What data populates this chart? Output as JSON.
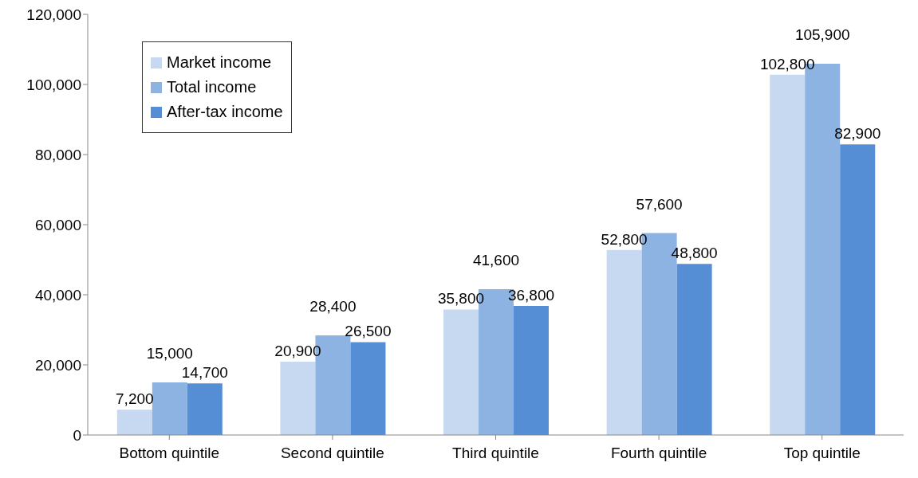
{
  "chart_data": {
    "type": "bar",
    "categories": [
      "Bottom quintile",
      "Second quintile",
      "Third quintile",
      "Fourth quintile",
      "Top quintile"
    ],
    "series": [
      {
        "name": "Market income",
        "color": "#c6d9f1",
        "values": [
          7200,
          20900,
          35800,
          52800,
          102800
        ],
        "value_labels": [
          "7,200",
          "20,900",
          "35,800",
          "52,800",
          "102,800"
        ]
      },
      {
        "name": "Total income",
        "color": "#8db3e2",
        "values": [
          15000,
          28400,
          41600,
          57600,
          105900
        ],
        "value_labels": [
          "15,000",
          "28,400",
          "41,600",
          "57,600",
          "105,900"
        ]
      },
      {
        "name": "After-tax income",
        "color": "#558ed5",
        "values": [
          14700,
          26500,
          36800,
          48800,
          82900
        ],
        "value_labels": [
          "14,700",
          "26,500",
          "36,800",
          "48,800",
          "82,900"
        ]
      }
    ],
    "ylim": [
      0,
      120000
    ],
    "yticks": [
      0,
      {
        "value": 20000,
        "label": "20,000"
      },
      {
        "value": 40000,
        "label": "40,000"
      },
      {
        "value": 60000,
        "label": "60,000"
      },
      {
        "value": 80000,
        "label": "80,000"
      },
      {
        "value": 100000,
        "label": "100,000"
      },
      {
        "value": 120000,
        "label": "120,000"
      }
    ],
    "grid": false,
    "legend": "top left"
  }
}
